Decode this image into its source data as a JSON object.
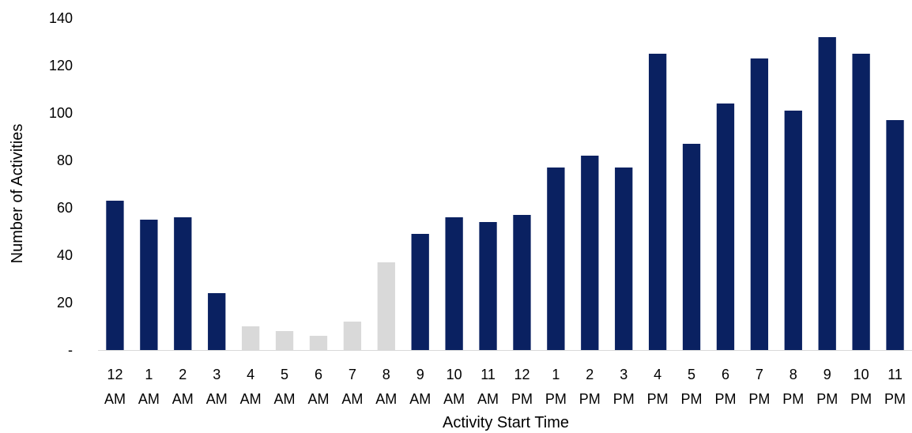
{
  "chart_data": {
    "type": "bar",
    "title": "",
    "xlabel": "Activity Start Time",
    "ylabel": "Number of Activities",
    "ylim": [
      0,
      140
    ],
    "yticks": [
      {
        "value": 0,
        "label": "-"
      },
      {
        "value": 20,
        "label": "20"
      },
      {
        "value": 40,
        "label": "40"
      },
      {
        "value": 60,
        "label": "60"
      },
      {
        "value": 80,
        "label": "80"
      },
      {
        "value": 100,
        "label": "100"
      },
      {
        "value": 120,
        "label": "120"
      },
      {
        "value": 140,
        "label": "140"
      }
    ],
    "grid": false,
    "legend": "none",
    "colors": {
      "highlight": "#0a2161",
      "muted": "#d9d9d9"
    },
    "categories": [
      {
        "hour": "12",
        "period": "AM"
      },
      {
        "hour": "1",
        "period": "AM"
      },
      {
        "hour": "2",
        "period": "AM"
      },
      {
        "hour": "3",
        "period": "AM"
      },
      {
        "hour": "4",
        "period": "AM"
      },
      {
        "hour": "5",
        "period": "AM"
      },
      {
        "hour": "6",
        "period": "AM"
      },
      {
        "hour": "7",
        "period": "AM"
      },
      {
        "hour": "8",
        "period": "AM"
      },
      {
        "hour": "9",
        "period": "AM"
      },
      {
        "hour": "10",
        "period": "AM"
      },
      {
        "hour": "11",
        "period": "AM"
      },
      {
        "hour": "12",
        "period": "PM"
      },
      {
        "hour": "1",
        "period": "PM"
      },
      {
        "hour": "2",
        "period": "PM"
      },
      {
        "hour": "3",
        "period": "PM"
      },
      {
        "hour": "4",
        "period": "PM"
      },
      {
        "hour": "5",
        "period": "PM"
      },
      {
        "hour": "6",
        "period": "PM"
      },
      {
        "hour": "7",
        "period": "PM"
      },
      {
        "hour": "8",
        "period": "PM"
      },
      {
        "hour": "9",
        "period": "PM"
      },
      {
        "hour": "10",
        "period": "PM"
      },
      {
        "hour": "11",
        "period": "PM"
      }
    ],
    "values": [
      63,
      55,
      56,
      24,
      10,
      8,
      6,
      12,
      37,
      49,
      56,
      54,
      57,
      77,
      82,
      77,
      125,
      87,
      104,
      123,
      101,
      132,
      125,
      97
    ],
    "muted": [
      false,
      false,
      false,
      false,
      true,
      true,
      true,
      true,
      true,
      false,
      false,
      false,
      false,
      false,
      false,
      false,
      false,
      false,
      false,
      false,
      false,
      false,
      false,
      false
    ]
  }
}
